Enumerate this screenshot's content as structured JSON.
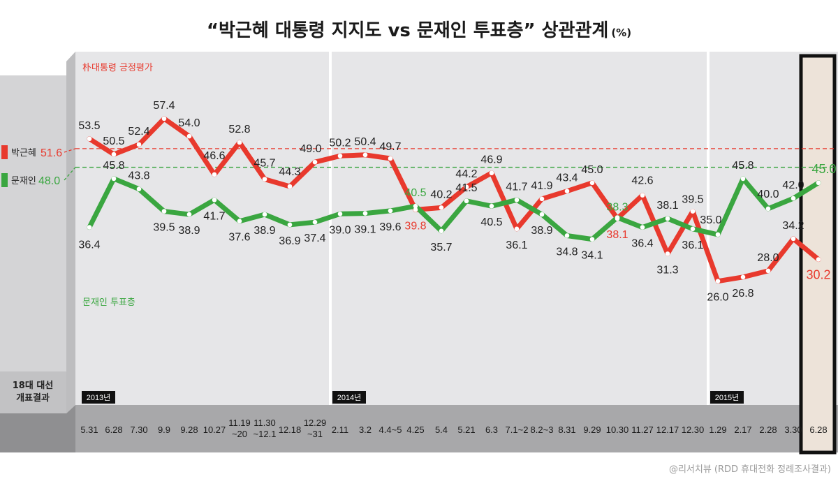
{
  "title": "“박근혜 대통령 지지도 vs 문재인 투표층” 상관관계",
  "title_unit": "(%)",
  "election_label_1": "18대 대선",
  "election_label_2": "개표결과",
  "source": "@리서치뷰 (RDD 휴대전화 정례조사결과)",
  "colors": {
    "red": "#e8392d",
    "green": "#3aa640",
    "panel": "#e6e6e8",
    "axis_band": "#a8a8aa",
    "highlight": "#ede3d9"
  },
  "chart_data": {
    "type": "line",
    "categories": [
      "5.31",
      "6.28",
      "7.30",
      "9.9",
      "9.28",
      "10.27",
      "11.19 ~20",
      "11.30 ~12.1",
      "12.18",
      "12.29 ~31",
      "2.11",
      "3.2",
      "4.4~5",
      "4.25",
      "5.4",
      "5.21",
      "6.3",
      "7.1~2",
      "8.2~3",
      "8.31",
      "9.29",
      "10.30",
      "11.27",
      "12.17",
      "12.30",
      "1.29",
      "2.17",
      "2.28",
      "3.30",
      "6.28"
    ],
    "year_labels": [
      {
        "label": "2013년",
        "index": 0
      },
      {
        "label": "2014년",
        "index": 10
      },
      {
        "label": "2015년",
        "index": 25
      }
    ],
    "series": [
      {
        "name": "朴대통령 긍정평가",
        "color": "#e8392d",
        "values": [
          53.5,
          50.5,
          52.4,
          57.4,
          54.0,
          46.6,
          52.8,
          45.7,
          44.3,
          49.0,
          50.2,
          50.4,
          49.7,
          39.8,
          40.2,
          44.2,
          46.9,
          36.1,
          41.9,
          43.4,
          45.0,
          38.1,
          42.6,
          31.3,
          39.5,
          26.0,
          26.8,
          28.0,
          34.2,
          30.2
        ]
      },
      {
        "name": "문재인 투표층",
        "color": "#3aa640",
        "values": [
          36.4,
          45.8,
          43.8,
          39.5,
          38.9,
          41.7,
          37.6,
          38.9,
          36.9,
          37.4,
          39.0,
          39.1,
          39.6,
          40.5,
          35.7,
          41.5,
          40.5,
          41.7,
          38.9,
          34.8,
          34.1,
          38.3,
          36.4,
          38.1,
          36.1,
          35.0,
          45.8,
          40.0,
          42.0,
          45.0
        ]
      }
    ],
    "reference_lines": [
      {
        "name": "박근혜",
        "value": 51.6,
        "color": "#e8392d"
      },
      {
        "name": "문재인",
        "value": 48.0,
        "color": "#3aa640"
      }
    ],
    "highlight_category": "6.28",
    "xlabel": "",
    "ylabel": ""
  }
}
